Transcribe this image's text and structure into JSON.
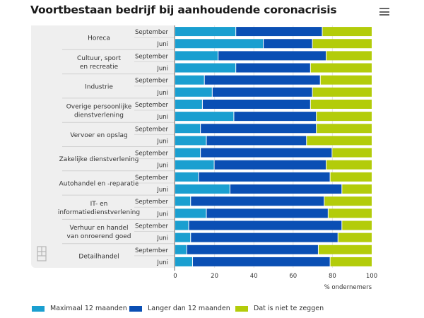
{
  "title": "Voortbestaan bedrijf bij aanhoudende coronacrisis",
  "menu_icon": "hamburger-menu-icon",
  "logo_icon": "cbs-logo-icon",
  "colors": {
    "max12": "#1a9fd0",
    "langer12": "#0a4fb4",
    "nietTeZeggen": "#b3cc0a",
    "panel": "#efefef"
  },
  "chart_data": {
    "type": "bar",
    "orientation": "horizontal",
    "stacked": "percent",
    "title": "Voortbestaan bedrijf bij aanhoudende coronacrisis",
    "xlabel": "% ondernemers",
    "ylabel": "",
    "xlim": [
      0,
      100
    ],
    "xticks": [
      "0",
      "20",
      "40",
      "60",
      "80",
      "100"
    ],
    "grid": true,
    "legend_position": "bottom",
    "series_names": [
      "Maximaal 12 maanden",
      "Langer dan 12 maanden",
      "Dat is niet te zeggen"
    ],
    "groups": [
      {
        "label": "Horeca",
        "label_lines": [
          "Horeca"
        ],
        "rows": [
          {
            "period": "September",
            "values": [
              31,
              44,
              25
            ]
          },
          {
            "period": "Juni",
            "values": [
              45,
              25,
              30
            ]
          }
        ]
      },
      {
        "label": "Cultuur, sport en recreatie",
        "label_lines": [
          "Cultuur, sport",
          "en recreatie"
        ],
        "rows": [
          {
            "period": "September",
            "values": [
              22,
              55,
              23
            ]
          },
          {
            "period": "Juni",
            "values": [
              31,
              38,
              31
            ]
          }
        ]
      },
      {
        "label": "Industrie",
        "label_lines": [
          "Industrie"
        ],
        "rows": [
          {
            "period": "September",
            "values": [
              15,
              59,
              26
            ]
          },
          {
            "period": "Juni",
            "values": [
              19,
              51,
              30
            ]
          }
        ]
      },
      {
        "label": "Overige persoonlijke dienstverlening",
        "label_lines": [
          "Overige persoonlijke",
          "dienstverlening"
        ],
        "rows": [
          {
            "period": "September",
            "values": [
              14,
              55,
              31
            ]
          },
          {
            "period": "Juni",
            "values": [
              30,
              42,
              28
            ]
          }
        ]
      },
      {
        "label": "Vervoer en opslag",
        "label_lines": [
          "Vervoer en opslag"
        ],
        "rows": [
          {
            "period": "September",
            "values": [
              13,
              59,
              28
            ]
          },
          {
            "period": "Juni",
            "values": [
              16,
              51,
              33
            ]
          }
        ]
      },
      {
        "label": "Zakelijke dienstverlening",
        "label_lines": [
          "Zakelijke dienstverlening"
        ],
        "rows": [
          {
            "period": "September",
            "values": [
              13,
              67,
              20
            ]
          },
          {
            "period": "Juni",
            "values": [
              20,
              57,
              23
            ]
          }
        ]
      },
      {
        "label": "Autohandel en -reparatie",
        "label_lines": [
          "Autohandel en -reparatie"
        ],
        "rows": [
          {
            "period": "September",
            "values": [
              12,
              67,
              21
            ]
          },
          {
            "period": "Juni",
            "values": [
              28,
              57,
              15
            ]
          }
        ]
      },
      {
        "label": "IT- en informatiedienstverlening",
        "label_lines": [
          "IT- en",
          "informatiedienstverlening"
        ],
        "rows": [
          {
            "period": "September",
            "values": [
              8,
              68,
              24
            ]
          },
          {
            "period": "Juni",
            "values": [
              16,
              62,
              22
            ]
          }
        ]
      },
      {
        "label": "Verhuur en handel van onroerend goed",
        "label_lines": [
          "Verhuur en handel",
          "van onroerend goed"
        ],
        "rows": [
          {
            "period": "September",
            "values": [
              7,
              78,
              15
            ]
          },
          {
            "period": "Juni",
            "values": [
              8,
              75,
              17
            ]
          }
        ]
      },
      {
        "label": "Detailhandel",
        "label_lines": [
          "Detailhandel"
        ],
        "rows": [
          {
            "period": "September",
            "values": [
              6,
              67,
              27
            ]
          },
          {
            "period": "Juni",
            "values": [
              9,
              70,
              21
            ]
          }
        ]
      }
    ]
  }
}
